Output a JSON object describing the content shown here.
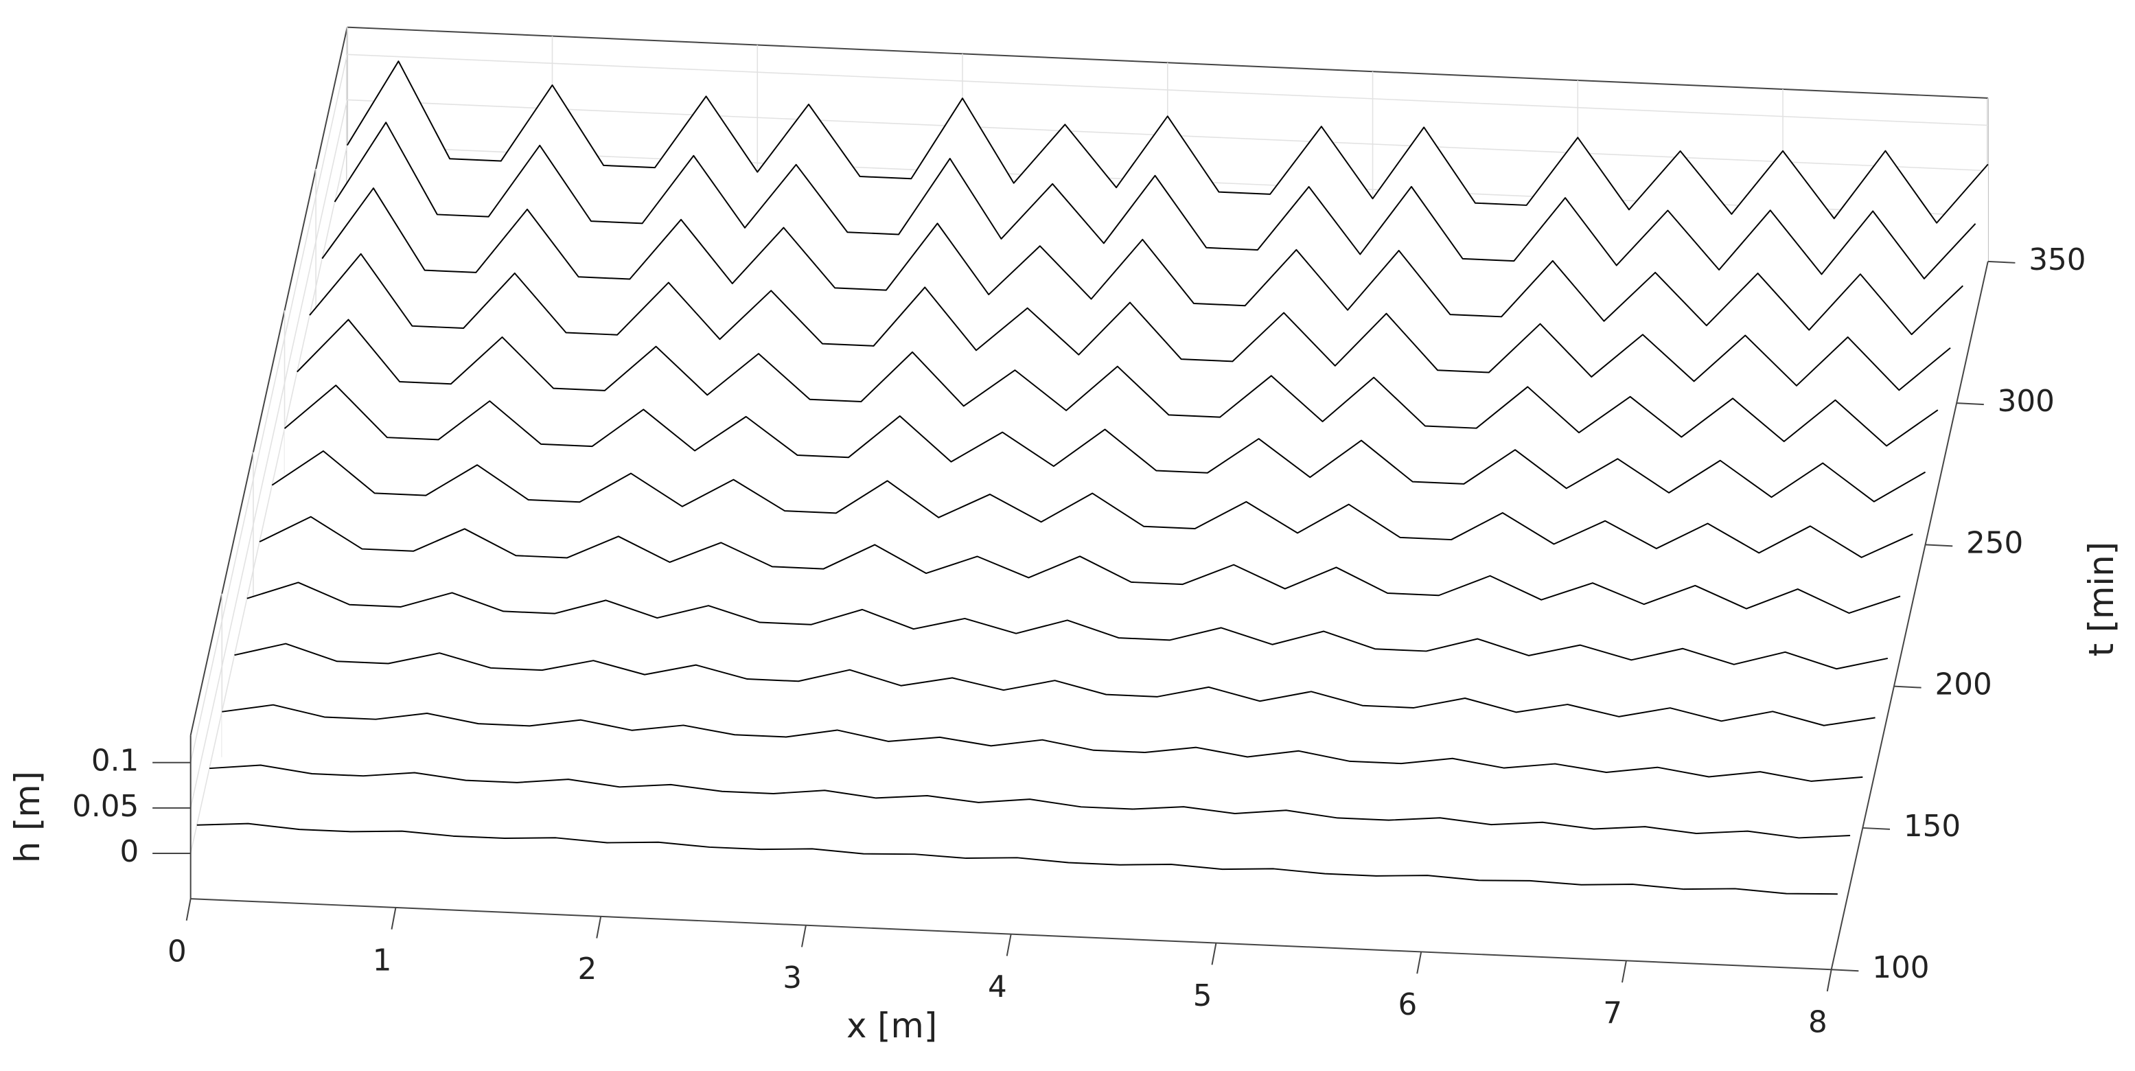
{
  "chart_data": {
    "type": "waterfall",
    "xlabel": "x [m]",
    "ylabel": "t [min]",
    "zlabel": "h [m]",
    "color": "#000000",
    "grid": true,
    "xlim": [
      0,
      8
    ],
    "xticks": [
      0,
      1,
      2,
      3,
      4,
      5,
      6,
      7,
      8
    ],
    "ylim": [
      100,
      350
    ],
    "yticks": [
      100,
      150,
      200,
      250,
      300,
      350
    ],
    "zlim": [
      -0.05,
      0.13
    ],
    "zticks": [
      0,
      0.05,
      0.1
    ],
    "x": [
      0,
      0.25,
      0.5,
      0.75,
      1,
      1.25,
      1.5,
      1.75,
      2,
      2.25,
      2.5,
      2.75,
      3,
      3.25,
      3.5,
      3.75,
      4,
      4.25,
      4.5,
      4.75,
      5,
      5.25,
      5.5,
      5.75,
      6,
      6.25,
      6.5,
      6.75,
      7,
      7.25,
      7.5,
      7.75,
      8
    ],
    "series": [
      {
        "t": 110,
        "values": [
          0,
          0.004,
          0,
          0,
          0.003,
          0,
          0,
          0.003,
          0,
          0.003,
          0,
          0,
          0.003,
          0,
          0.002,
          0,
          0.003,
          0,
          0,
          0.003,
          0,
          0.003,
          0,
          0,
          0.003,
          0,
          0.002,
          0,
          0.003,
          0,
          0.003,
          0,
          0.002
        ]
      },
      {
        "t": 130,
        "values": [
          0,
          0.006,
          -0.001,
          -0.001,
          0.005,
          -0.001,
          -0.001,
          0.005,
          -0.001,
          0.004,
          -0.001,
          -0.001,
          0.005,
          -0.001,
          0.004,
          -0.001,
          0.005,
          -0.001,
          -0.001,
          0.004,
          -0.001,
          0.005,
          -0.001,
          -0.001,
          0.004,
          -0.001,
          0.004,
          -0.001,
          0.004,
          -0.001,
          0.004,
          -0.001,
          0.004
        ]
      },
      {
        "t": 150,
        "values": [
          0,
          0.01,
          -0.001,
          -0.001,
          0.008,
          -0.001,
          -0.001,
          0.008,
          -0.001,
          0.007,
          -0.001,
          -0.001,
          0.009,
          -0.001,
          0.006,
          -0.001,
          0.008,
          -0.001,
          -0.001,
          0.007,
          -0.001,
          0.008,
          -0.001,
          -0.001,
          0.007,
          -0.001,
          0.006,
          -0.001,
          0.007,
          -0.001,
          0.007,
          -0.001,
          0.006
        ]
      },
      {
        "t": 170,
        "values": [
          0,
          0.015,
          -0.002,
          -0.002,
          0.012,
          -0.002,
          -0.002,
          0.011,
          -0.002,
          0.011,
          -0.002,
          -0.002,
          0.013,
          -0.002,
          0.009,
          -0.002,
          0.011,
          -0.002,
          -0.002,
          0.011,
          -0.002,
          0.011,
          -0.002,
          -0.002,
          0.011,
          -0.002,
          0.009,
          -0.002,
          0.01,
          -0.002,
          0.011,
          -0.002,
          0.009
        ]
      },
      {
        "t": 190,
        "values": [
          0,
          0.02,
          -0.002,
          -0.002,
          0.016,
          -0.002,
          -0.002,
          0.015,
          -0.002,
          0.014,
          -0.002,
          -0.002,
          0.017,
          -0.002,
          0.012,
          -0.002,
          0.015,
          -0.002,
          -0.002,
          0.014,
          -0.002,
          0.015,
          -0.002,
          -0.002,
          0.014,
          -0.002,
          0.012,
          -0.002,
          0.013,
          -0.002,
          0.014,
          -0.002,
          0.012
        ]
      },
      {
        "t": 210,
        "values": [
          0,
          0.03,
          -0.003,
          -0.003,
          0.024,
          -0.003,
          -0.003,
          0.023,
          -0.003,
          0.021,
          -0.003,
          -0.003,
          0.026,
          -0.003,
          0.018,
          -0.003,
          0.023,
          -0.003,
          -0.003,
          0.021,
          -0.003,
          0.023,
          -0.003,
          -0.003,
          0.021,
          -0.003,
          0.018,
          -0.003,
          0.02,
          -0.003,
          0.021,
          -0.003,
          0.018
        ]
      },
      {
        "t": 230,
        "values": [
          0,
          0.04,
          -0.004,
          -0.004,
          0.032,
          -0.004,
          -0.004,
          0.03,
          -0.004,
          0.028,
          -0.004,
          -0.004,
          0.034,
          -0.004,
          0.024,
          -0.004,
          0.03,
          -0.004,
          -0.004,
          0.028,
          -0.004,
          0.03,
          -0.004,
          -0.004,
          0.028,
          -0.004,
          0.024,
          -0.004,
          0.026,
          -0.004,
          0.028,
          -0.004,
          0.024
        ]
      },
      {
        "t": 250,
        "values": [
          0,
          0.05,
          -0.005,
          -0.005,
          0.04,
          -0.005,
          -0.005,
          0.038,
          -0.005,
          0.035,
          -0.005,
          -0.005,
          0.043,
          -0.005,
          0.03,
          -0.005,
          0.038,
          -0.005,
          -0.005,
          0.035,
          -0.005,
          0.038,
          -0.005,
          -0.005,
          0.035,
          -0.005,
          0.03,
          -0.005,
          0.033,
          -0.005,
          0.035,
          -0.005,
          0.03
        ]
      },
      {
        "t": 270,
        "values": [
          0,
          0.06,
          -0.006,
          -0.006,
          0.048,
          -0.006,
          -0.006,
          0.045,
          -0.006,
          0.042,
          -0.006,
          -0.006,
          0.051,
          -0.006,
          0.036,
          -0.006,
          0.045,
          -0.006,
          -0.006,
          0.042,
          -0.006,
          0.045,
          -0.006,
          -0.006,
          0.042,
          -0.006,
          0.036,
          -0.006,
          0.039,
          -0.006,
          0.042,
          -0.006,
          0.036
        ]
      },
      {
        "t": 290,
        "values": [
          0,
          0.07,
          -0.007,
          -0.007,
          0.056,
          -0.007,
          -0.007,
          0.053,
          -0.007,
          0.049,
          -0.007,
          -0.007,
          0.06,
          -0.007,
          0.042,
          -0.007,
          0.053,
          -0.007,
          -0.007,
          0.049,
          -0.007,
          0.053,
          -0.007,
          -0.007,
          0.049,
          -0.007,
          0.042,
          -0.007,
          0.046,
          -0.007,
          0.049,
          -0.007,
          0.042
        ]
      },
      {
        "t": 310,
        "values": [
          0,
          0.08,
          -0.008,
          -0.008,
          0.064,
          -0.008,
          -0.008,
          0.06,
          -0.008,
          0.056,
          -0.008,
          -0.008,
          0.068,
          -0.008,
          0.048,
          -0.008,
          0.06,
          -0.008,
          -0.008,
          0.056,
          -0.008,
          0.06,
          -0.008,
          -0.008,
          0.056,
          -0.008,
          0.048,
          -0.008,
          0.052,
          -0.008,
          0.056,
          -0.008,
          0.048
        ]
      },
      {
        "t": 330,
        "values": [
          0,
          0.09,
          -0.009,
          -0.009,
          0.072,
          -0.009,
          -0.009,
          0.068,
          -0.009,
          0.063,
          -0.009,
          -0.009,
          0.077,
          -0.009,
          0.054,
          -0.009,
          0.068,
          -0.009,
          -0.009,
          0.063,
          -0.009,
          0.068,
          -0.009,
          -0.009,
          0.063,
          -0.009,
          0.054,
          -0.009,
          0.059,
          -0.009,
          0.063,
          -0.009,
          0.054
        ]
      },
      {
        "t": 350,
        "values": [
          0,
          0.095,
          -0.01,
          -0.01,
          0.076,
          -0.01,
          -0.01,
          0.071,
          -0.01,
          0.067,
          -0.01,
          -0.01,
          0.081,
          -0.01,
          0.057,
          -0.01,
          0.071,
          -0.01,
          -0.01,
          0.067,
          -0.01,
          0.071,
          -0.01,
          -0.01,
          0.067,
          -0.01,
          0.057,
          -0.01,
          0.062,
          -0.01,
          0.067,
          -0.01,
          0.057
        ]
      }
    ]
  }
}
